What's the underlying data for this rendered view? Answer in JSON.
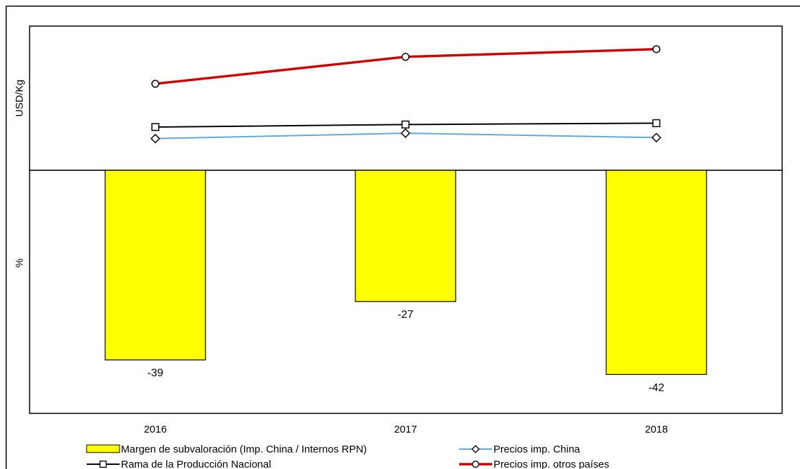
{
  "chart_data": {
    "type": "bar+line",
    "categories": [
      "2016",
      "2017",
      "2018"
    ],
    "upper_panel": {
      "ylabel": "USD/Kg",
      "series": [
        {
          "name": "Precios imp. China",
          "color": "#5fa8e0",
          "marker": "diamond",
          "values": [
            1.65,
            1.93,
            1.7
          ]
        },
        {
          "name": "Rama de la Producción Nacional",
          "color": "#000000",
          "marker": "square",
          "values": [
            2.25,
            2.38,
            2.45
          ]
        },
        {
          "name": "Precios imp. otros países",
          "color": "#d00000",
          "marker": "circle",
          "values": [
            4.5,
            5.9,
            6.3
          ]
        }
      ],
      "ylim": [
        0,
        7.5
      ]
    },
    "lower_panel": {
      "ylabel": "%",
      "series": [
        {
          "name": "Margen de subvaloración (Imp. China / Internos RPN)",
          "color": "#ffff00",
          "values": [
            -39,
            -27,
            -42
          ]
        }
      ],
      "data_labels": [
        "-39",
        "-27",
        "-42"
      ],
      "ylim": [
        -50,
        0
      ]
    },
    "legend": {
      "items": [
        {
          "label": "Margen de subvaloración (Imp. China / Internos RPN)",
          "kind": "bar",
          "color": "#ffff00"
        },
        {
          "label": "Precios imp. China",
          "kind": "line",
          "marker": "diamond",
          "color": "#5fa8e0"
        },
        {
          "label": "Rama de la Producción Nacional",
          "kind": "line",
          "marker": "square",
          "color": "#000000"
        },
        {
          "label": "Precios imp. otros países",
          "kind": "line",
          "marker": "circle",
          "color": "#d00000"
        }
      ],
      "position": "bottom"
    }
  }
}
